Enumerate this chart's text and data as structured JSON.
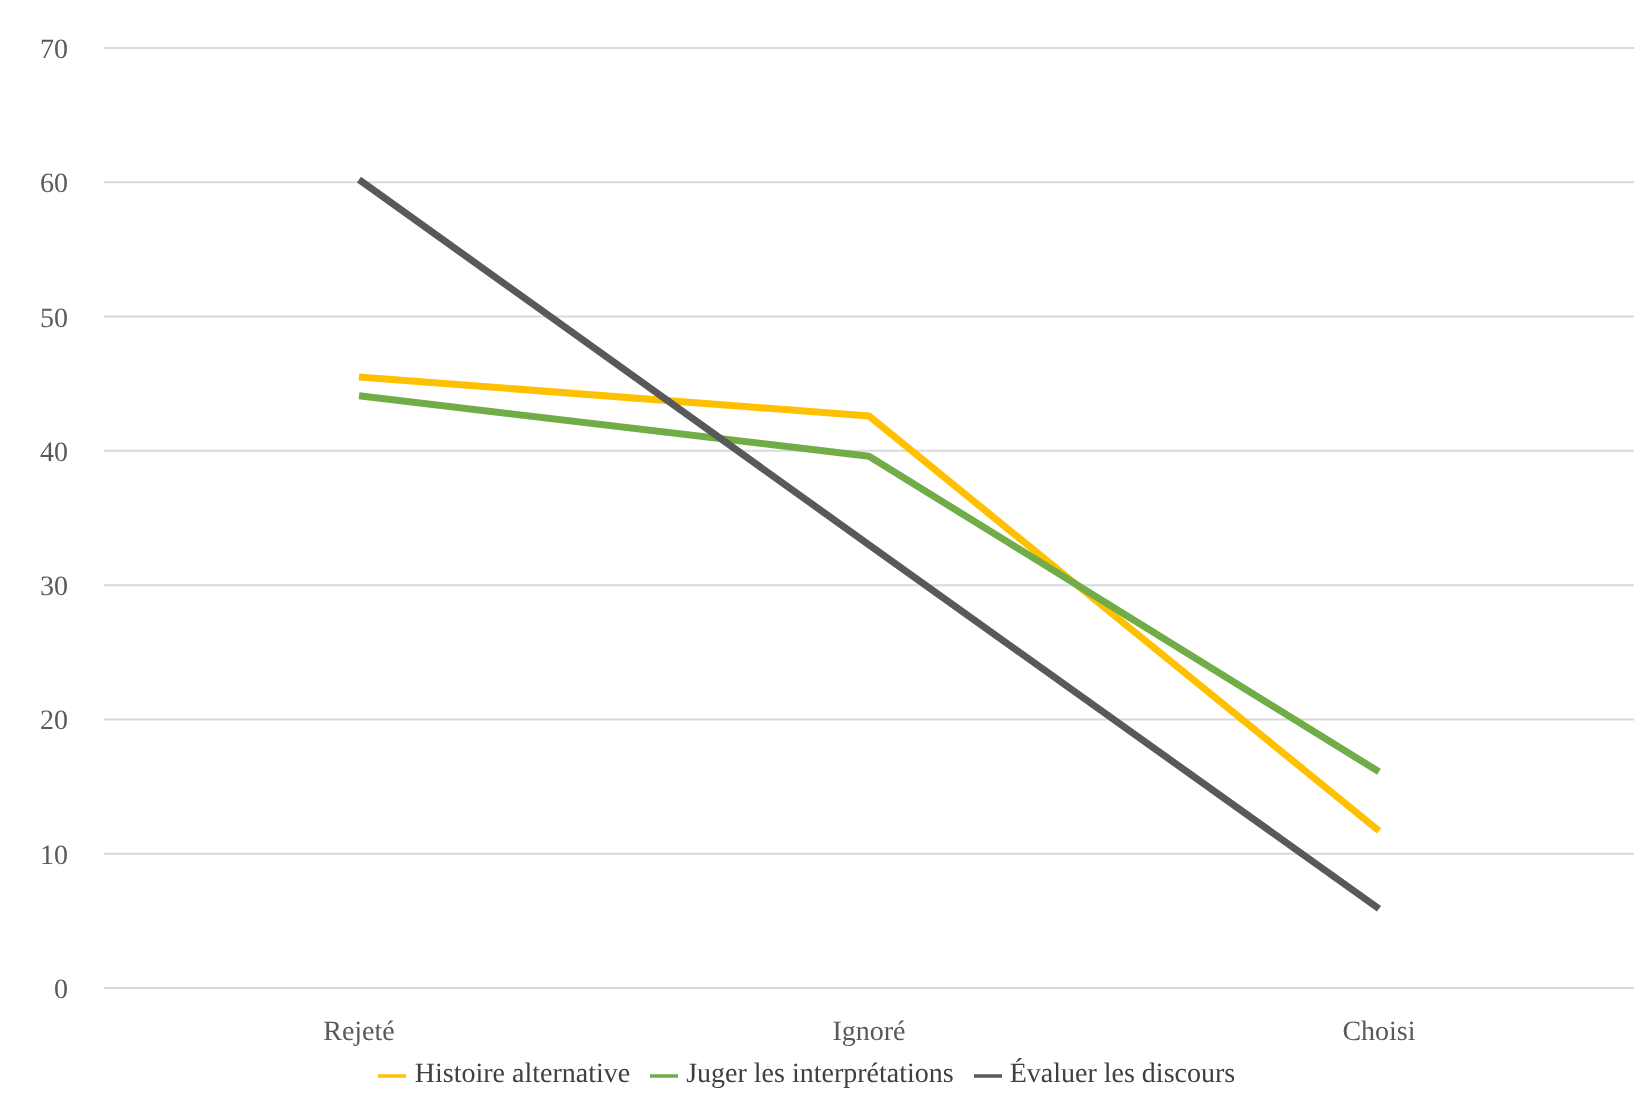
{
  "chart_data": {
    "type": "line",
    "categories": [
      "Rejeté",
      "Ignoré",
      "Choisi"
    ],
    "series": [
      {
        "name": "Histoire alternative",
        "color": "#ffc000",
        "values": [
          45.5,
          42.6,
          11.7
        ]
      },
      {
        "name": "Juger les interprétations",
        "color": "#70ad47",
        "values": [
          44.1,
          39.6,
          16.1
        ]
      },
      {
        "name": "Évaluer les discours",
        "color": "#595959",
        "values": [
          60.2,
          33,
          5.9
        ]
      }
    ],
    "ylim": [
      0,
      70
    ],
    "yticks": [
      0,
      10,
      20,
      30,
      40,
      50,
      60,
      70
    ],
    "grid": "y",
    "legend": "bottom",
    "marker": "none",
    "line_style": "solid"
  }
}
